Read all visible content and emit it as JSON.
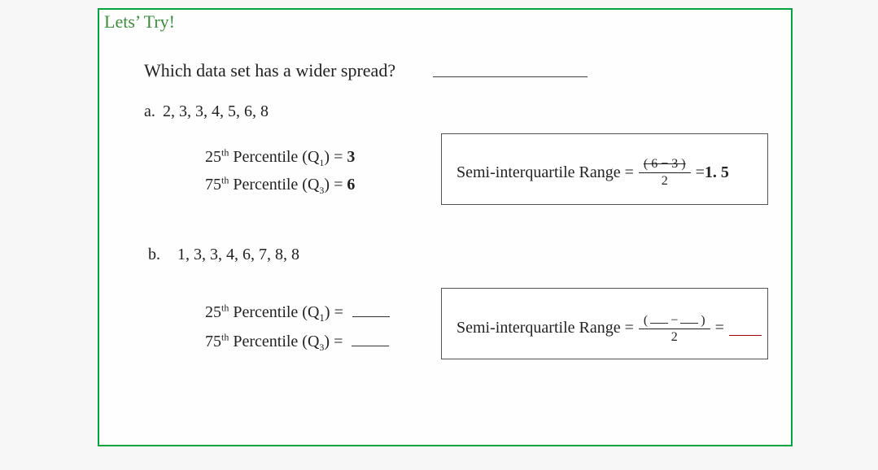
{
  "colors": {
    "border": "#00a33f",
    "header_text": "#3d8b3d",
    "body_text": "#222222",
    "background": "#f6f7f6",
    "box_border": "#555555",
    "blank_red": "#a00000"
  },
  "fonts": {
    "family": "Times New Roman",
    "header_size_pt": 17,
    "body_size_pt": 15
  },
  "header": "Lets’ Try!",
  "question": "Which data set has a wider spread?",
  "items": {
    "a": {
      "label": "a.",
      "dataset": "2, 3, 3, 4, 5, 6, 8",
      "p25": {
        "label_pre": "25",
        "label_sup": "th",
        "label_post": " Percentile (Q",
        "sub": "1",
        "label_end": ") = ",
        "value": "3"
      },
      "p75": {
        "label_pre": "75",
        "label_sup": "th",
        "label_post": " Percentile (Q",
        "sub": "3",
        "label_end": ") = ",
        "value": "6"
      },
      "siqr": {
        "label": "Semi-interquartile Range = ",
        "numerator": "( 6 − 3 )",
        "numerator_struck": true,
        "denominator": "2",
        "equals": " = ",
        "result": "1. 5",
        "result_bold": true
      }
    },
    "b": {
      "label": "b.",
      "dataset": "1, 3, 3, 4, 6, 7, 8, 8",
      "p25": {
        "label_pre": "25",
        "label_sup": "th",
        "label_post": " Percentile (Q",
        "sub": "1",
        "label_end": ") = "
      },
      "p75": {
        "label_pre": "75",
        "label_sup": "th",
        "label_post": " Percentile (Q",
        "sub": "3",
        "label_end": ") = "
      },
      "siqr": {
        "label": "Semi-interquartile Range = ",
        "numerator_left": "(",
        "numerator_op": "−",
        "numerator_right": ")",
        "denominator": "2",
        "equals": " = "
      }
    }
  }
}
